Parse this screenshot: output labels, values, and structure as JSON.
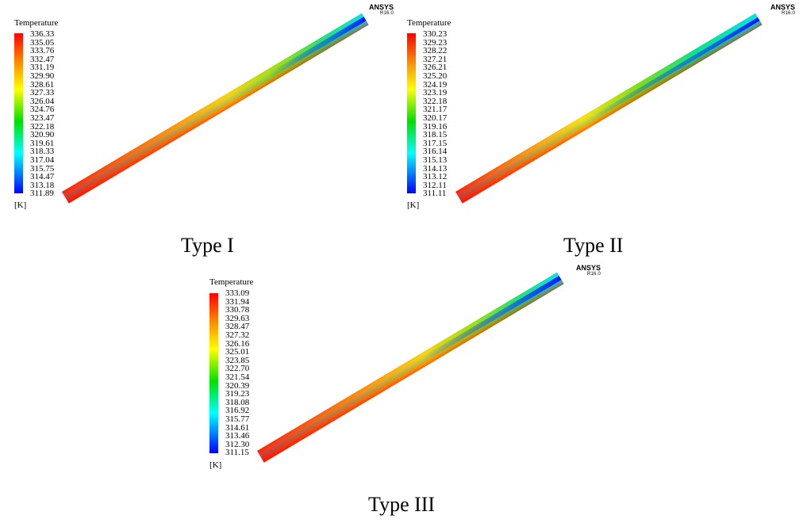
{
  "brand": {
    "name": "ANSYS",
    "version": "R16.0"
  },
  "panels": [
    {
      "legend_title": "Temperature",
      "unit": "[K]",
      "ticks": [
        "336.33",
        "335.05",
        "333.76",
        "332.47",
        "331.19",
        "329.90",
        "328.61",
        "327.33",
        "326.04",
        "324.76",
        "323.47",
        "322.18",
        "320.90",
        "319.61",
        "318.33",
        "317.04",
        "315.75",
        "314.47",
        "313.18",
        "311.89"
      ],
      "caption": "Type I"
    },
    {
      "legend_title": "Temperature",
      "unit": "[K]",
      "ticks": [
        "330.23",
        "329.23",
        "328.22",
        "327.21",
        "326.21",
        "325.20",
        "324.19",
        "323.19",
        "322.18",
        "321.17",
        "320.17",
        "319.16",
        "318.15",
        "317.15",
        "316.14",
        "315.13",
        "314.13",
        "313.12",
        "312.11",
        "311.11"
      ],
      "caption": "Type II"
    },
    {
      "legend_title": "Temperature",
      "unit": "[K]",
      "ticks": [
        "333.09",
        "331.94",
        "330.78",
        "329.63",
        "328.47",
        "327.32",
        "326.16",
        "325.01",
        "323.85",
        "322.70",
        "321.54",
        "320.39",
        "319.23",
        "318.08",
        "316.92",
        "315.77",
        "314.61",
        "313.46",
        "312.30",
        "311.15"
      ],
      "caption": "Type III"
    }
  ],
  "colors": {
    "hot": "#ff0000",
    "warm": "#ff8800",
    "mid": "#ffff00",
    "cool": "#00e000",
    "cold": "#00ffff",
    "coldest": "#0000ff"
  }
}
